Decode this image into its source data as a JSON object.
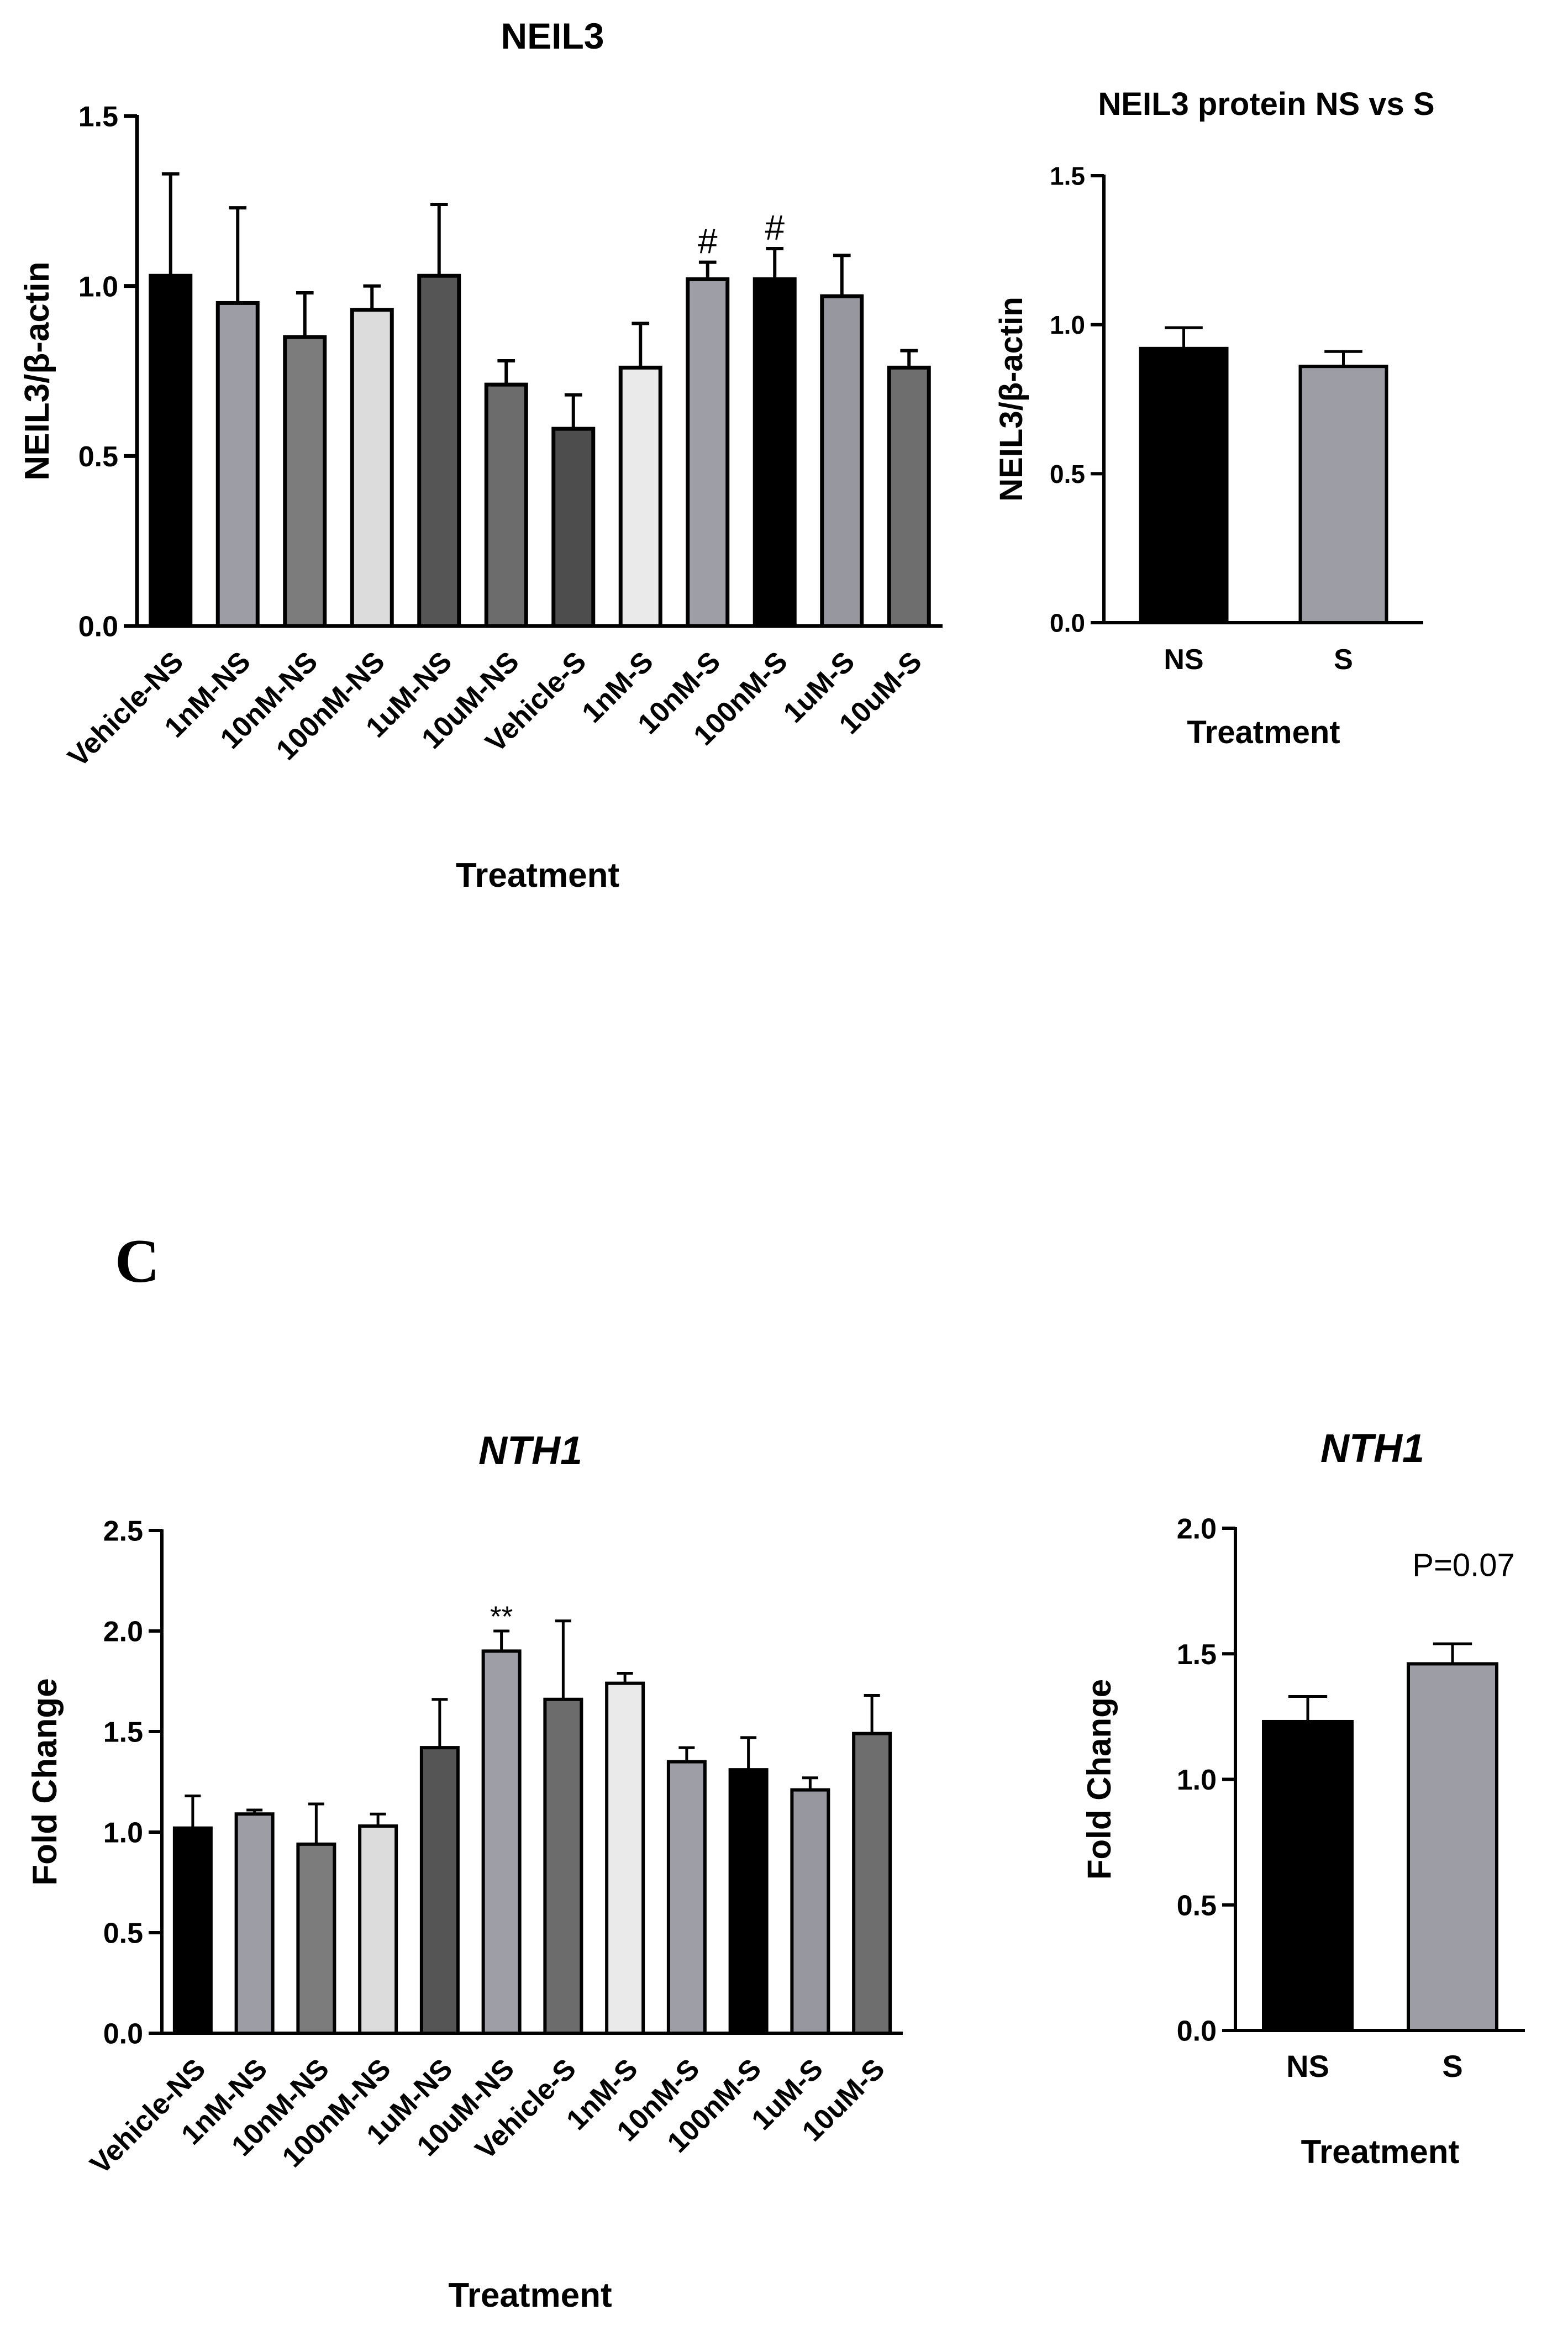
{
  "panel_label": "C",
  "chart_data": [
    {
      "id": "neil3-treatments",
      "type": "bar",
      "title": "NEIL3",
      "title_italic": false,
      "xlabel": "Treatment",
      "ylabel": "NEIL3/β-actin",
      "ylim": [
        0,
        1.5
      ],
      "yticks": [
        "0.0",
        "0.5",
        "1.0",
        "1.5"
      ],
      "ytick_values": [
        0,
        0.5,
        1.0,
        1.5
      ],
      "categories": [
        "Vehicle-NS",
        "1nM-NS",
        "10nM-NS",
        "100nM-NS",
        "1uM-NS",
        "10uM-NS",
        "Vehicle-S",
        "1nM-S",
        "10nM-S",
        "100nM-S",
        "1uM-S",
        "10uM-S"
      ],
      "values": [
        1.03,
        0.95,
        0.85,
        0.93,
        1.03,
        0.71,
        0.58,
        0.76,
        1.02,
        1.02,
        0.97,
        0.76
      ],
      "errors": [
        0.3,
        0.28,
        0.13,
        0.07,
        0.21,
        0.07,
        0.1,
        0.13,
        0.05,
        0.09,
        0.12,
        0.05
      ],
      "colors": [
        "#000000",
        "#9d9da5",
        "#7c7c7c",
        "#dcdcdc",
        "#555555",
        "#6c6c6c",
        "#4d4d4d",
        "#eaeaea",
        "#9e9ea6",
        "#000000",
        "#97979f",
        "#6e6e6e"
      ],
      "annotations": [
        "",
        "",
        "",
        "",
        "",
        "",
        "",
        "",
        "#",
        "#",
        "",
        ""
      ]
    },
    {
      "id": "neil3-ns-vs-s",
      "type": "bar",
      "title": "NEIL3 protein NS vs S",
      "title_italic": false,
      "xlabel": "Treatment",
      "ylabel": "NEIL3/β-actin",
      "ylim": [
        0,
        1.5
      ],
      "yticks": [
        "0.0",
        "0.5",
        "1.0",
        "1.5"
      ],
      "ytick_values": [
        0,
        0.5,
        1.0,
        1.5
      ],
      "categories": [
        "NS",
        "S"
      ],
      "values": [
        0.92,
        0.86
      ],
      "errors": [
        0.07,
        0.05
      ],
      "colors": [
        "#000000",
        "#9d9da5"
      ],
      "annotations": [
        "",
        ""
      ]
    },
    {
      "id": "nth1-treatments",
      "type": "bar",
      "title": "NTH1",
      "title_italic": true,
      "xlabel": "Treatment",
      "ylabel": "Fold Change",
      "ylim": [
        0,
        2.5
      ],
      "yticks": [
        "0.0",
        "0.5",
        "1.0",
        "1.5",
        "2.0",
        "2.5"
      ],
      "ytick_values": [
        0,
        0.5,
        1.0,
        1.5,
        2.0,
        2.5
      ],
      "categories": [
        "Vehicle-NS",
        "1nM-NS",
        "10nM-NS",
        "100nM-NS",
        "1uM-NS",
        "10uM-NS",
        "Vehicle-S",
        "1nM-S",
        "10nM-S",
        "100nM-S",
        "1uM-S",
        "10uM-S"
      ],
      "values": [
        1.02,
        1.09,
        0.94,
        1.03,
        1.42,
        1.9,
        1.66,
        1.74,
        1.35,
        1.31,
        1.21,
        1.49
      ],
      "errors": [
        0.16,
        0.02,
        0.2,
        0.06,
        0.24,
        0.1,
        0.39,
        0.05,
        0.07,
        0.16,
        0.06,
        0.19
      ],
      "colors": [
        "#000000",
        "#9d9da5",
        "#7c7c7c",
        "#dcdcdc",
        "#555555",
        "#9e9ea6",
        "#6c6c6c",
        "#eaeaea",
        "#9e9ea6",
        "#000000",
        "#97979f",
        "#6e6e6e"
      ],
      "annotations": [
        "",
        "",
        "",
        "",
        "",
        "**",
        "",
        "",
        "",
        "",
        "",
        ""
      ]
    },
    {
      "id": "nth1-ns-vs-s",
      "type": "bar",
      "title": "NTH1",
      "title_italic": true,
      "xlabel": "Treatment",
      "ylabel": "Fold Change",
      "ylim": [
        0,
        2.0
      ],
      "yticks": [
        "0.0",
        "0.5",
        "1.0",
        "1.5",
        "2.0"
      ],
      "ytick_values": [
        0,
        0.5,
        1.0,
        1.5,
        2.0
      ],
      "categories": [
        "NS",
        "S"
      ],
      "values": [
        1.23,
        1.46
      ],
      "errors": [
        0.1,
        0.08
      ],
      "colors": [
        "#000000",
        "#9d9da5"
      ],
      "annotations": [
        "",
        ""
      ],
      "pvalue_text": "P=0.07"
    }
  ]
}
